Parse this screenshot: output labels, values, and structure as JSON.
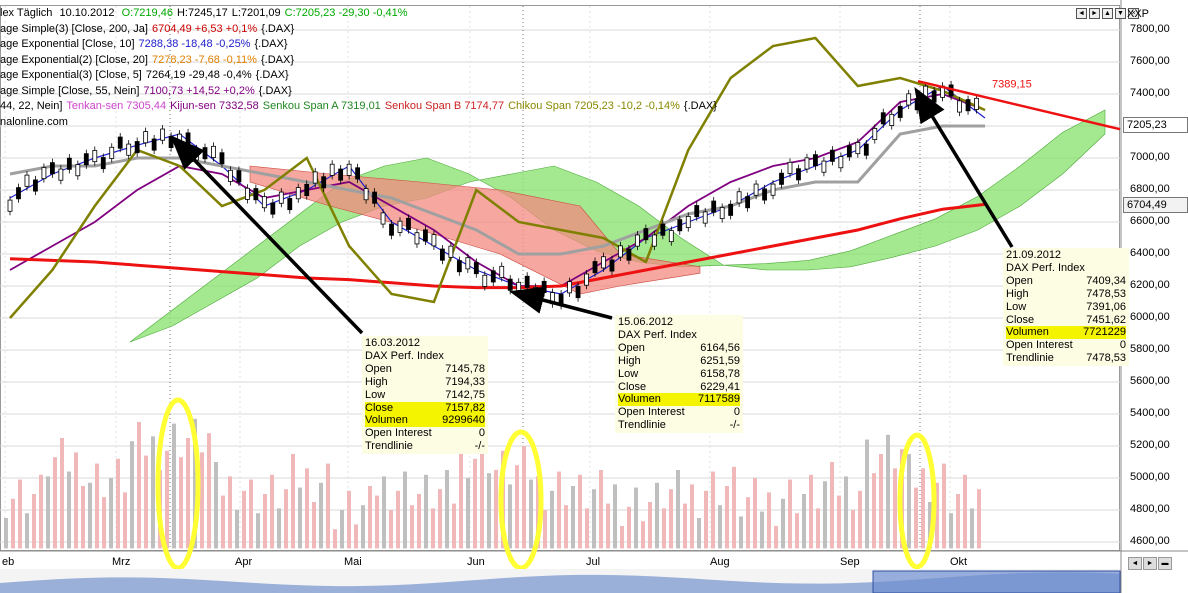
{
  "header": {
    "title_text": "lex Täglich",
    "date": "10.10.2012",
    "ohlc": [
      {
        "text": "O:7219,46",
        "color": "#00aa00"
      },
      {
        "text": "H:7245,17",
        "color": "#000000"
      },
      {
        "text": "L:7201,09",
        "color": "#000000"
      },
      {
        "text": "C:7205,23 -29,30 -0,41%",
        "color": "#00aa00"
      }
    ]
  },
  "indicators": [
    {
      "parts": [
        {
          "text": "age Simple(3) [Close, 200, Ja]",
          "color": "#000000"
        },
        {
          "text": "6704,49 +6,53 +0,1%",
          "color": "#cc0000"
        },
        {
          "text": "{.DAX}",
          "color": "#000000"
        }
      ]
    },
    {
      "parts": [
        {
          "text": "age Exponential [Close, 10]",
          "color": "#000000"
        },
        {
          "text": "7288,38 -18,48 -0,25%",
          "color": "#2020cc"
        },
        {
          "text": "{.DAX}",
          "color": "#000000"
        }
      ]
    },
    {
      "parts": [
        {
          "text": "age Exponential(2) [Close, 20]",
          "color": "#000000"
        },
        {
          "text": "7278,23 -7,68 -0,11%",
          "color": "#e08000"
        },
        {
          "text": "{.DAX}",
          "color": "#000000"
        }
      ]
    },
    {
      "parts": [
        {
          "text": "age Exponential(3) [Close, 5]",
          "color": "#000000"
        },
        {
          "text": "7264,19 -29,48 -0,4%",
          "color": "#000000"
        },
        {
          "text": "{.DAX}",
          "color": "#000000"
        }
      ]
    },
    {
      "parts": [
        {
          "text": "age Simple [Close, 55, Nein]",
          "color": "#000000"
        },
        {
          "text": "7100,73 +14,52 +0,2%",
          "color": "#800080"
        },
        {
          "text": "{.DAX}",
          "color": "#000000"
        }
      ]
    },
    {
      "parts": [
        {
          "text": "44, 22, Nein]",
          "color": "#000000"
        },
        {
          "text": "Tenkan-sen 7305,44",
          "color": "#cc44cc"
        },
        {
          "text": "Kijun-sen 7332,58",
          "color": "#800080"
        },
        {
          "text": "Senkou Span A 7319,01",
          "color": "#228822"
        },
        {
          "text": "Senkou Span B 7174,77",
          "color": "#cc2222"
        },
        {
          "text": "Chikou Span 7205,23 -10,2 -0,14%",
          "color": "#888800"
        },
        {
          "text": "{.DAX}",
          "color": "#000000"
        }
      ]
    },
    {
      "parts": [
        {
          "text": "nalonline.com",
          "color": "#000000"
        }
      ]
    }
  ],
  "window_buttons": [
    "◄",
    "►",
    "▲",
    "▼",
    "×"
  ],
  "y_axis": {
    "title": "XXP",
    "min": 4550,
    "max": 7950,
    "ticks": [
      "7800,00",
      "7600,00",
      "7400,00",
      "7200,00",
      "7000,00",
      "6800,00",
      "6600,00",
      "6400,00",
      "6200,00",
      "6000,00",
      "5800,00",
      "5600,00",
      "5400,00",
      "5200,00",
      "5000,00",
      "4800,00",
      "4600,00"
    ],
    "price_tags": [
      {
        "value": 7205.23,
        "label": "7205,23"
      },
      {
        "value": 6704.49,
        "label": "6704,49"
      }
    ]
  },
  "x_axis": {
    "months": [
      "eb",
      "Mrz",
      "Apr",
      "Mai",
      "Jun",
      "Jul",
      "Aug",
      "Sep",
      "Okt"
    ]
  },
  "annotations": {
    "trendline_value": "7389,15",
    "trendline_color": "#ee1111",
    "arrow_color": "#000000",
    "highlight_color": "#ffff33"
  },
  "info_boxes": [
    {
      "date": "16.03.2012",
      "name": "DAX Perf. Index",
      "rows": [
        {
          "k": "Open",
          "v": "7145,78",
          "hl": false
        },
        {
          "k": "High",
          "v": "7194,33",
          "hl": false
        },
        {
          "k": "Low",
          "v": "7142,75",
          "hl": false
        },
        {
          "k": "Close",
          "v": "7157,82",
          "hl": true
        },
        {
          "k": "Volumen",
          "v": "9299640",
          "hl": true
        },
        {
          "k": "Open Interest",
          "v": "0",
          "hl": false
        },
        {
          "k": "Trendlinie",
          "v": "-/-",
          "hl": false
        }
      ]
    },
    {
      "date": "15.06.2012",
      "name": "DAX Perf. Index",
      "rows": [
        {
          "k": "Open",
          "v": "6164,56",
          "hl": false
        },
        {
          "k": "High",
          "v": "6251,59",
          "hl": false
        },
        {
          "k": "Low",
          "v": "6158,78",
          "hl": false
        },
        {
          "k": "Close",
          "v": "6229,41",
          "hl": false
        },
        {
          "k": "Volumen",
          "v": "7117589",
          "hl": true
        },
        {
          "k": "Open Interest",
          "v": "0",
          "hl": false
        },
        {
          "k": "Trendlinie",
          "v": "-/-",
          "hl": false
        }
      ]
    },
    {
      "date": "21.09.2012",
      "name": "DAX Perf. Index",
      "rows": [
        {
          "k": "Open",
          "v": "7409,34",
          "hl": false
        },
        {
          "k": "High",
          "v": "7478,53",
          "hl": false
        },
        {
          "k": "Low",
          "v": "7391,06",
          "hl": false
        },
        {
          "k": "Close",
          "v": "7451,62",
          "hl": false
        },
        {
          "k": "Volumen",
          "v": "7721229",
          "hl": true
        },
        {
          "k": "Open Interest",
          "v": "0",
          "hl": false
        },
        {
          "k": "Trendlinie",
          "v": "7478,53",
          "hl": false
        }
      ]
    }
  ],
  "chart_data": {
    "type": "line",
    "ylim": [
      4550,
      7950
    ],
    "x": [
      "Feb",
      "Feb",
      "Mrz",
      "Mrz",
      "Mrz",
      "Apr",
      "Apr",
      "Apr",
      "Mai",
      "Mai",
      "Mai",
      "Jun",
      "Jun",
      "Jun",
      "Jul",
      "Jul",
      "Jul",
      "Aug",
      "Aug",
      "Aug",
      "Sep",
      "Sep",
      "Sep",
      "Okt"
    ],
    "series": [
      {
        "values": [
          6750,
          6900,
          7000,
          7080,
          7150,
          6950,
          6700,
          6800,
          6950,
          6600,
          6450,
          6300,
          6200,
          6150,
          6300,
          6500,
          6600,
          6700,
          6850,
          6950,
          7050,
          7300,
          7450,
          7250
        ]
      },
      {
        "values": [
          6300,
          6450,
          6600,
          6800,
          6950,
          6900,
          6750,
          6800,
          6850,
          6700,
          6550,
          6350,
          6200,
          6200,
          6350,
          6500,
          6700,
          6850,
          6950,
          7000,
          7100,
          7350,
          7400,
          7300
        ]
      },
      {
        "values": [
          6900,
          6950,
          6950,
          7000,
          7000,
          6950,
          6900,
          6850,
          6800,
          6750,
          6650,
          6550,
          6400,
          6400,
          6450,
          6550,
          6650,
          6700,
          6800,
          6850,
          6850,
          7150,
          7200,
          7200
        ]
      },
      {
        "values": [
          6370,
          6360,
          6350,
          6330,
          6310,
          6290,
          6270,
          6250,
          6240,
          6220,
          6200,
          6190,
          6190,
          6200,
          6250,
          6300,
          6350,
          6400,
          6450,
          6500,
          6550,
          6620,
          6680,
          6710
        ]
      },
      {
        "values": [
          6000,
          6300,
          6700,
          7050,
          6950,
          6700,
          6800,
          7000,
          6450,
          6150,
          6100,
          6800,
          6600,
          6550,
          6500,
          6350,
          7050,
          7500,
          7700,
          7750,
          7450,
          7500,
          7420,
          7300
        ]
      }
    ],
    "volume": [
      4900,
      5100,
      5000,
      5200,
      5250,
      4950,
      4900,
      5000,
      4800,
      4950,
      4900,
      5150,
      5050,
      4950,
      4900,
      4850,
      4900,
      4950,
      4850,
      4900,
      4950,
      5150,
      5000,
      4900
    ],
    "trendline": {
      "start": 7480,
      "end": 7180,
      "label": "7389,15"
    }
  }
}
